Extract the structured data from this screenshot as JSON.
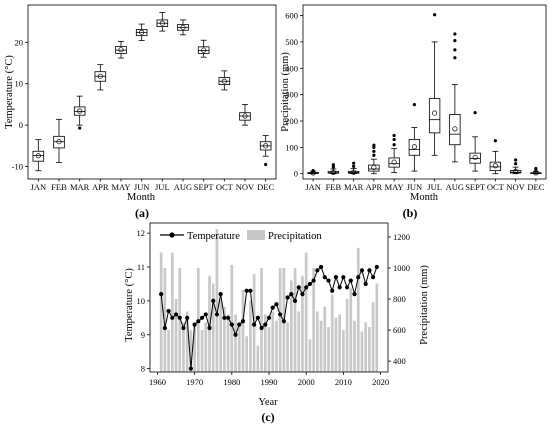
{
  "chart_data": [
    {
      "panel": "(a)",
      "type": "box",
      "xlabel": "Month",
      "ylabel": "Temperature (°C)",
      "ylim": [
        -13,
        29
      ],
      "yticks": [
        -10,
        0,
        10,
        20
      ],
      "categories": [
        "JAN",
        "FEB",
        "MAR",
        "APR",
        "MAY",
        "JUN",
        "JUL",
        "AUG",
        "SEPT",
        "OCT",
        "NOV",
        "DEC"
      ],
      "boxes": [
        {
          "min": -11,
          "q1": -8.7,
          "median": -7.3,
          "q3": -6.3,
          "max": -3.5,
          "mean": -7.4,
          "outliers": []
        },
        {
          "min": -9,
          "q1": -5.5,
          "median": -4,
          "q3": -2.7,
          "max": 1.4,
          "mean": -4,
          "outliers": []
        },
        {
          "min": 0,
          "q1": 2.4,
          "median": 3.3,
          "q3": 4.4,
          "max": 7,
          "mean": 3.4,
          "outliers": [
            -0.7
          ]
        },
        {
          "min": 8.5,
          "q1": 10.6,
          "median": 11.8,
          "q3": 12.9,
          "max": 14.6,
          "mean": 11.8,
          "outliers": []
        },
        {
          "min": 16.2,
          "q1": 17.3,
          "median": 18.1,
          "q3": 19,
          "max": 20.2,
          "mean": 18.2,
          "outliers": []
        },
        {
          "min": 20.4,
          "q1": 21.6,
          "median": 22.4,
          "q3": 23.1,
          "max": 24.4,
          "mean": 22.4,
          "outliers": []
        },
        {
          "min": 22.7,
          "q1": 23.8,
          "median": 24.6,
          "q3": 25.4,
          "max": 27.2,
          "mean": 24.6,
          "outliers": []
        },
        {
          "min": 21.8,
          "q1": 22.9,
          "median": 23.6,
          "q3": 24.3,
          "max": 25.4,
          "mean": 23.6,
          "outliers": []
        },
        {
          "min": 16.4,
          "q1": 17.3,
          "median": 18,
          "q3": 18.9,
          "max": 20.5,
          "mean": 18.1,
          "outliers": []
        },
        {
          "min": 8.5,
          "q1": 9.8,
          "median": 10.6,
          "q3": 11.5,
          "max": 13.1,
          "mean": 10.6,
          "outliers": []
        },
        {
          "min": 0,
          "q1": 1.2,
          "median": 2.2,
          "q3": 3,
          "max": 5,
          "mean": 2.2,
          "outliers": []
        },
        {
          "min": -7.5,
          "q1": -6,
          "median": -5,
          "q3": -4,
          "max": -2.5,
          "mean": -5,
          "outliers": [
            -9.5
          ]
        }
      ]
    },
    {
      "panel": "(b)",
      "type": "box",
      "xlabel": "Month",
      "ylabel": "Precipitation (mm)",
      "ylim": [
        -20,
        640
      ],
      "yticks": [
        0,
        100,
        200,
        300,
        400,
        500,
        600
      ],
      "categories": [
        "JAN",
        "FEB",
        "MAR",
        "APR",
        "MAY",
        "JUN",
        "JUL",
        "AUG",
        "SEPT",
        "OCT",
        "NOV",
        "DEC"
      ],
      "boxes": [
        {
          "min": 0,
          "q1": 1,
          "median": 2,
          "q3": 5,
          "max": 10,
          "mean": 3,
          "outliers": [
            12
          ]
        },
        {
          "min": 0,
          "q1": 2,
          "median": 4,
          "q3": 9,
          "max": 18,
          "mean": 5,
          "outliers": [
            25,
            34
          ]
        },
        {
          "min": 0,
          "q1": 2,
          "median": 5,
          "q3": 9,
          "max": 20,
          "mean": 6,
          "outliers": [
            28,
            40
          ]
        },
        {
          "min": 0,
          "q1": 10,
          "median": 18,
          "q3": 33,
          "max": 55,
          "mean": 24,
          "outliers": [
            70,
            85,
            100,
            108
          ]
        },
        {
          "min": 5,
          "q1": 25,
          "median": 38,
          "q3": 60,
          "max": 95,
          "mean": 44,
          "outliers": [
            110,
            130,
            145
          ]
        },
        {
          "min": 10,
          "q1": 70,
          "median": 92,
          "q3": 130,
          "max": 175,
          "mean": 102,
          "outliers": [
            262
          ]
        },
        {
          "min": 70,
          "q1": 155,
          "median": 205,
          "q3": 285,
          "max": 500,
          "mean": 230,
          "outliers": [
            603
          ]
        },
        {
          "min": 45,
          "q1": 110,
          "median": 150,
          "q3": 225,
          "max": 338,
          "mean": 170,
          "outliers": [
            440,
            470,
            505,
            530
          ]
        },
        {
          "min": 10,
          "q1": 40,
          "median": 58,
          "q3": 78,
          "max": 140,
          "mean": 62,
          "outliers": [
            232
          ]
        },
        {
          "min": 0,
          "q1": 12,
          "median": 26,
          "q3": 44,
          "max": 85,
          "mean": 30,
          "outliers": [
            125
          ]
        },
        {
          "min": 0,
          "q1": 3,
          "median": 6,
          "q3": 12,
          "max": 25,
          "mean": 9,
          "outliers": [
            38,
            52
          ]
        },
        {
          "min": 0,
          "q1": 1,
          "median": 2,
          "q3": 4,
          "max": 9,
          "mean": 3,
          "outliers": [
            13,
            20
          ]
        }
      ]
    },
    {
      "panel": "(c)",
      "type": "bar+line",
      "xlabel": "Year",
      "ylabel": "Temperature (°C)",
      "y2label": "Precipitation (mm)",
      "legend": [
        "Temperature",
        "Precipitation"
      ],
      "legend_position": "top-left",
      "xlim": [
        1958,
        2022
      ],
      "xticks": [
        1960,
        1970,
        1980,
        1990,
        2000,
        2010,
        2020
      ],
      "ylim": [
        7.9,
        12.3
      ],
      "yticks": [
        8,
        9,
        10,
        11,
        12
      ],
      "y2lim": [
        330,
        1290
      ],
      "y2ticks": [
        400,
        600,
        800,
        1000,
        1200
      ],
      "years": [
        1961,
        1962,
        1963,
        1964,
        1965,
        1966,
        1967,
        1968,
        1969,
        1970,
        1971,
        1972,
        1973,
        1974,
        1975,
        1976,
        1977,
        1978,
        1979,
        1980,
        1981,
        1982,
        1983,
        1984,
        1985,
        1986,
        1987,
        1988,
        1989,
        1990,
        1991,
        1992,
        1993,
        1994,
        1995,
        1996,
        1997,
        1998,
        1999,
        2000,
        2001,
        2002,
        2003,
        2004,
        2005,
        2006,
        2007,
        2008,
        2009,
        2010,
        2011,
        2012,
        2013,
        2014,
        2015,
        2016,
        2017,
        2018,
        2019
      ],
      "temperature": [
        10.2,
        9.2,
        9.7,
        9.5,
        9.6,
        9.5,
        9.2,
        9.5,
        8,
        9.3,
        9.4,
        9.5,
        9.6,
        9.2,
        10,
        9.6,
        10.2,
        9.5,
        9.5,
        9.3,
        9,
        9.3,
        9.4,
        10.3,
        10.3,
        9.3,
        9.5,
        9.2,
        9.3,
        9.5,
        9.8,
        9.9,
        9.6,
        9.4,
        10.1,
        10.2,
        10,
        10.4,
        10.2,
        10.4,
        10.5,
        10.6,
        10.9,
        11,
        10.7,
        10.6,
        10.3,
        10.7,
        10.4,
        10.7,
        10.4,
        10.6,
        10.2,
        10.7,
        10.9,
        10.5,
        10.9,
        10.7,
        11
      ],
      "precipitation": [
        1100,
        1000,
        600,
        1100,
        800,
        1000,
        650,
        720,
        600,
        620,
        1000,
        600,
        650,
        950,
        900,
        1250,
        800,
        750,
        700,
        1020,
        700,
        650,
        860,
        560,
        790,
        960,
        500,
        1000,
        700,
        620,
        720,
        660,
        1000,
        1000,
        650,
        920,
        1000,
        720,
        950,
        1100,
        540,
        1000,
        720,
        660,
        750,
        620,
        830,
        680,
        700,
        600,
        800,
        870,
        660,
        1130,
        590,
        650,
        620,
        780,
        900
      ]
    }
  ],
  "captions": {
    "a": "(a)",
    "b": "(b)",
    "c": "(c)"
  }
}
